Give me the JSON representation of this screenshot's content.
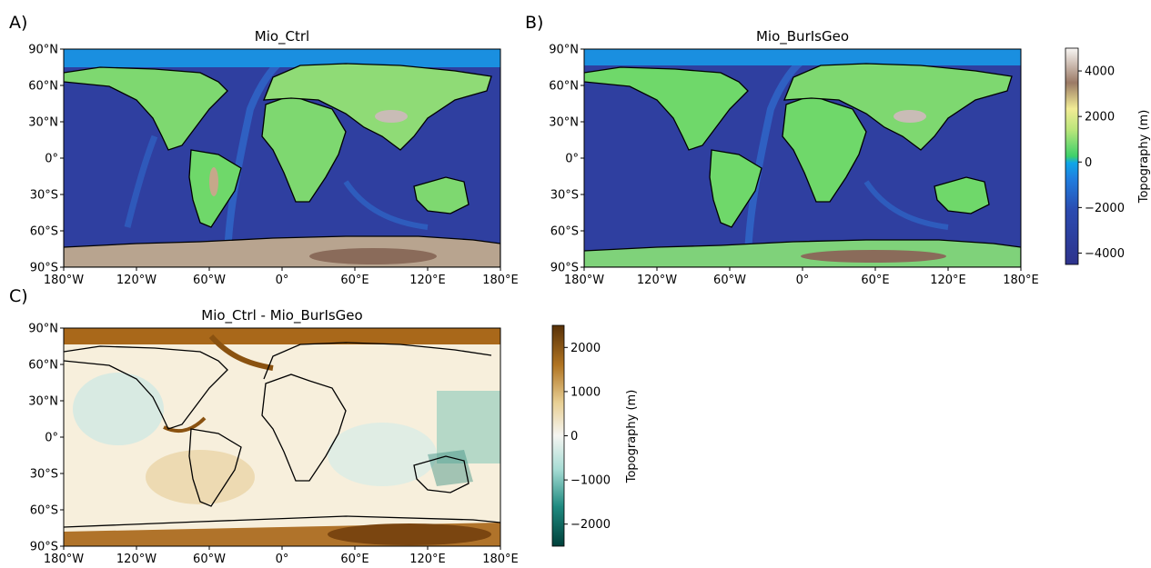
{
  "panels": [
    {
      "letter": "A)",
      "title": "Mio_Ctrl"
    },
    {
      "letter": "B)",
      "title": "Mio_BurIsGeo"
    },
    {
      "letter": "C)",
      "title": "Mio_Ctrl - Mio_BurIsGeo"
    }
  ],
  "lat_ticks": [
    "90°N",
    "60°N",
    "30°N",
    "0°",
    "30°S",
    "60°S",
    "90°S"
  ],
  "lon_ticks": [
    "180°W",
    "120°W",
    "60°W",
    "0°",
    "60°E",
    "120°E",
    "180°E"
  ],
  "colorbar_top": {
    "label": "Topography (m)",
    "ticks": [
      "4000",
      "2000",
      "0",
      "−2000",
      "−4000"
    ],
    "colormap": "terrain",
    "range": [
      -4500,
      5000
    ]
  },
  "colorbar_bottom": {
    "label": "Topography (m)",
    "ticks": [
      "2000",
      "1000",
      "0",
      "−1000",
      "−2000"
    ],
    "colormap": "BrBG_r",
    "range": [
      -2500,
      2500
    ]
  },
  "colors": {
    "ocean_deep": "#2f3fa0",
    "ocean_shelf": "#1a8fe0",
    "land_low": "#6fd86a",
    "land_high": "#e6e58a",
    "mountain": "#8a6b5a",
    "ice": "#c8b9b0",
    "diff_pos": "#a0620f",
    "diff_neg": "#3aaea0"
  }
}
